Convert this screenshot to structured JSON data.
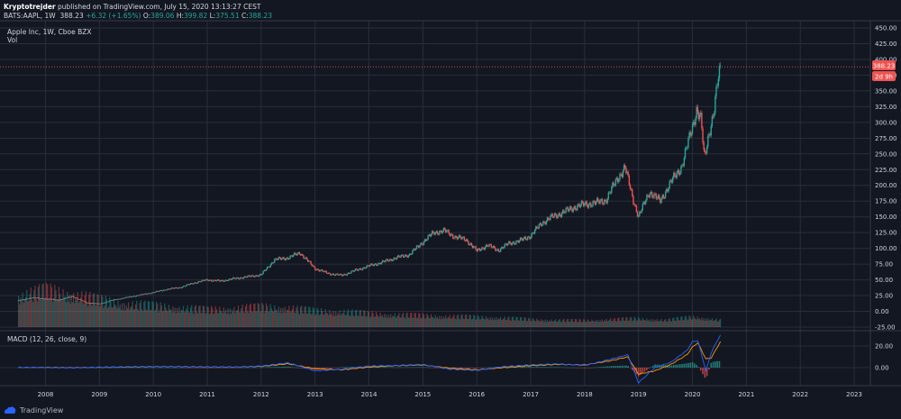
{
  "header": {
    "author": "Kryptotrejder",
    "published": "published on TradingView.com, July 15, 2020 13:13:27 CEST",
    "symbol": "BATS:AAPL, 1W",
    "last": "388.23",
    "change": "+6.32 (+1.65%)",
    "o_label": "O:",
    "o_value": "389.06",
    "h_label": "H:",
    "h_value": "399.82",
    "l_label": "L:",
    "l_value": "375.51",
    "c_label": "C:",
    "c_value": "388.23"
  },
  "pane_title": "Apple Inc, 1W, Cboe BZX",
  "vol_label": "Vol",
  "macd_title": "MACD (12, 26, close, 9)",
  "price_badge": "388.23",
  "time_badge": "2d 9h",
  "footer": {
    "brand": "TradingView"
  },
  "colors": {
    "up": "#26a69a",
    "down": "#ef5350",
    "badge": "#ef5350",
    "macd": "#2962ff",
    "signal": "#ff9800",
    "grid": "#2a2e39",
    "text": "#d1d4dc"
  },
  "chart_data": [
    {
      "type": "candlestick",
      "title": "Apple Inc, 1W, Cboe BZX",
      "x_ticks": [
        "2008",
        "2009",
        "2010",
        "2011",
        "2012",
        "2013",
        "2014",
        "2015",
        "2016",
        "2017",
        "2018",
        "2019",
        "2020",
        "2021",
        "2022",
        "2023"
      ],
      "y_ticks": [
        "450.00",
        "425.00",
        "400.00",
        "375.00",
        "350.00",
        "325.00",
        "300.00",
        "275.00",
        "250.00",
        "225.00",
        "200.00",
        "175.00",
        "150.00",
        "125.00",
        "100.00",
        "75.00",
        "50.00",
        "25.00",
        "0.00",
        "-25.00"
      ],
      "ylim": [
        -25,
        450
      ],
      "price_line": 388.23,
      "series": [
        {
          "name": "AAPL",
          "x": [
            2007.5,
            2007.75,
            2008.0,
            2008.25,
            2008.5,
            2008.75,
            2009.0,
            2009.25,
            2009.5,
            2009.75,
            2010.0,
            2010.25,
            2010.5,
            2010.75,
            2011.0,
            2011.25,
            2011.5,
            2011.75,
            2012.0,
            2012.25,
            2012.5,
            2012.72,
            2013.0,
            2013.25,
            2013.5,
            2013.75,
            2014.0,
            2014.25,
            2014.5,
            2014.75,
            2015.0,
            2015.2,
            2015.4,
            2015.6,
            2015.8,
            2016.0,
            2016.2,
            2016.4,
            2016.6,
            2016.8,
            2017.0,
            2017.2,
            2017.4,
            2017.6,
            2017.8,
            2018.0,
            2018.2,
            2018.4,
            2018.6,
            2018.75,
            2018.9,
            2019.0,
            2019.2,
            2019.4,
            2019.6,
            2019.8,
            2020.0,
            2020.08,
            2020.16,
            2020.22,
            2020.3,
            2020.4,
            2020.47,
            2020.53
          ],
          "values": [
            17,
            22,
            20,
            18,
            24,
            14,
            12,
            18,
            22,
            26,
            30,
            35,
            38,
            45,
            50,
            48,
            52,
            55,
            58,
            82,
            85,
            93,
            68,
            60,
            57,
            65,
            72,
            78,
            85,
            90,
            110,
            125,
            128,
            118,
            114,
            96,
            105,
            97,
            108,
            112,
            120,
            140,
            150,
            157,
            165,
            170,
            172,
            177,
            210,
            228,
            178,
            150,
            190,
            175,
            205,
            230,
            293,
            322,
            304,
            240,
            280,
            320,
            365,
            388
          ]
        }
      ]
    },
    {
      "type": "bar",
      "title": "Vol",
      "note": "weekly volume, relative units",
      "x": [
        2007.5,
        2008.0,
        2008.5,
        2009.0,
        2009.5,
        2010.0,
        2010.5,
        2011.0,
        2011.5,
        2012.0,
        2012.5,
        2013.0,
        2013.5,
        2014.0,
        2014.5,
        2015.0,
        2015.5,
        2016.0,
        2016.5,
        2017.0,
        2017.5,
        2018.0,
        2018.5,
        2019.0,
        2019.5,
        2020.0,
        2020.3,
        2020.53
      ],
      "values": [
        80,
        95,
        85,
        70,
        60,
        55,
        50,
        45,
        48,
        52,
        50,
        42,
        40,
        35,
        32,
        30,
        28,
        26,
        24,
        20,
        18,
        17,
        20,
        22,
        18,
        26,
        22,
        18
      ]
    },
    {
      "type": "line",
      "title": "MACD (12, 26, close, 9)",
      "y_ticks": [
        "20.00",
        "0.00"
      ],
      "ylim": [
        -16,
        32
      ],
      "x": [
        2007.5,
        2008.0,
        2008.5,
        2009.0,
        2009.5,
        2010.0,
        2010.5,
        2011.0,
        2011.5,
        2012.0,
        2012.5,
        2013.0,
        2013.5,
        2014.0,
        2014.5,
        2015.0,
        2015.5,
        2016.0,
        2016.5,
        2017.0,
        2017.5,
        2018.0,
        2018.5,
        2018.8,
        2019.0,
        2019.3,
        2019.6,
        2019.9,
        2020.0,
        2020.1,
        2020.25,
        2020.35,
        2020.45,
        2020.53
      ],
      "series": [
        {
          "name": "MACD",
          "values": [
            0.3,
            0.1,
            -0.2,
            0.4,
            0.8,
            1.0,
            0.9,
            0.6,
            0.5,
            1.5,
            4.5,
            -3.0,
            -1.5,
            1.5,
            2.0,
            3.0,
            -1.5,
            -2.5,
            1.0,
            2.5,
            3.5,
            2.0,
            8.0,
            12.0,
            -14.0,
            0,
            5.0,
            16.0,
            24.0,
            25.0,
            -3.0,
            14.0,
            24.0,
            31.0
          ]
        },
        {
          "name": "Signal",
          "values": [
            0.2,
            0.2,
            0,
            0.3,
            0.6,
            0.9,
            0.9,
            0.7,
            0.6,
            1.2,
            3.5,
            -1.0,
            -2.0,
            0.5,
            1.8,
            2.5,
            -0.5,
            -2.0,
            0,
            1.8,
            3.0,
            2.5,
            6.5,
            10.0,
            -6.0,
            -3.0,
            3.0,
            12.0,
            19.0,
            23.0,
            8.0,
            9.0,
            18.0,
            25.0
          ]
        }
      ]
    }
  ]
}
